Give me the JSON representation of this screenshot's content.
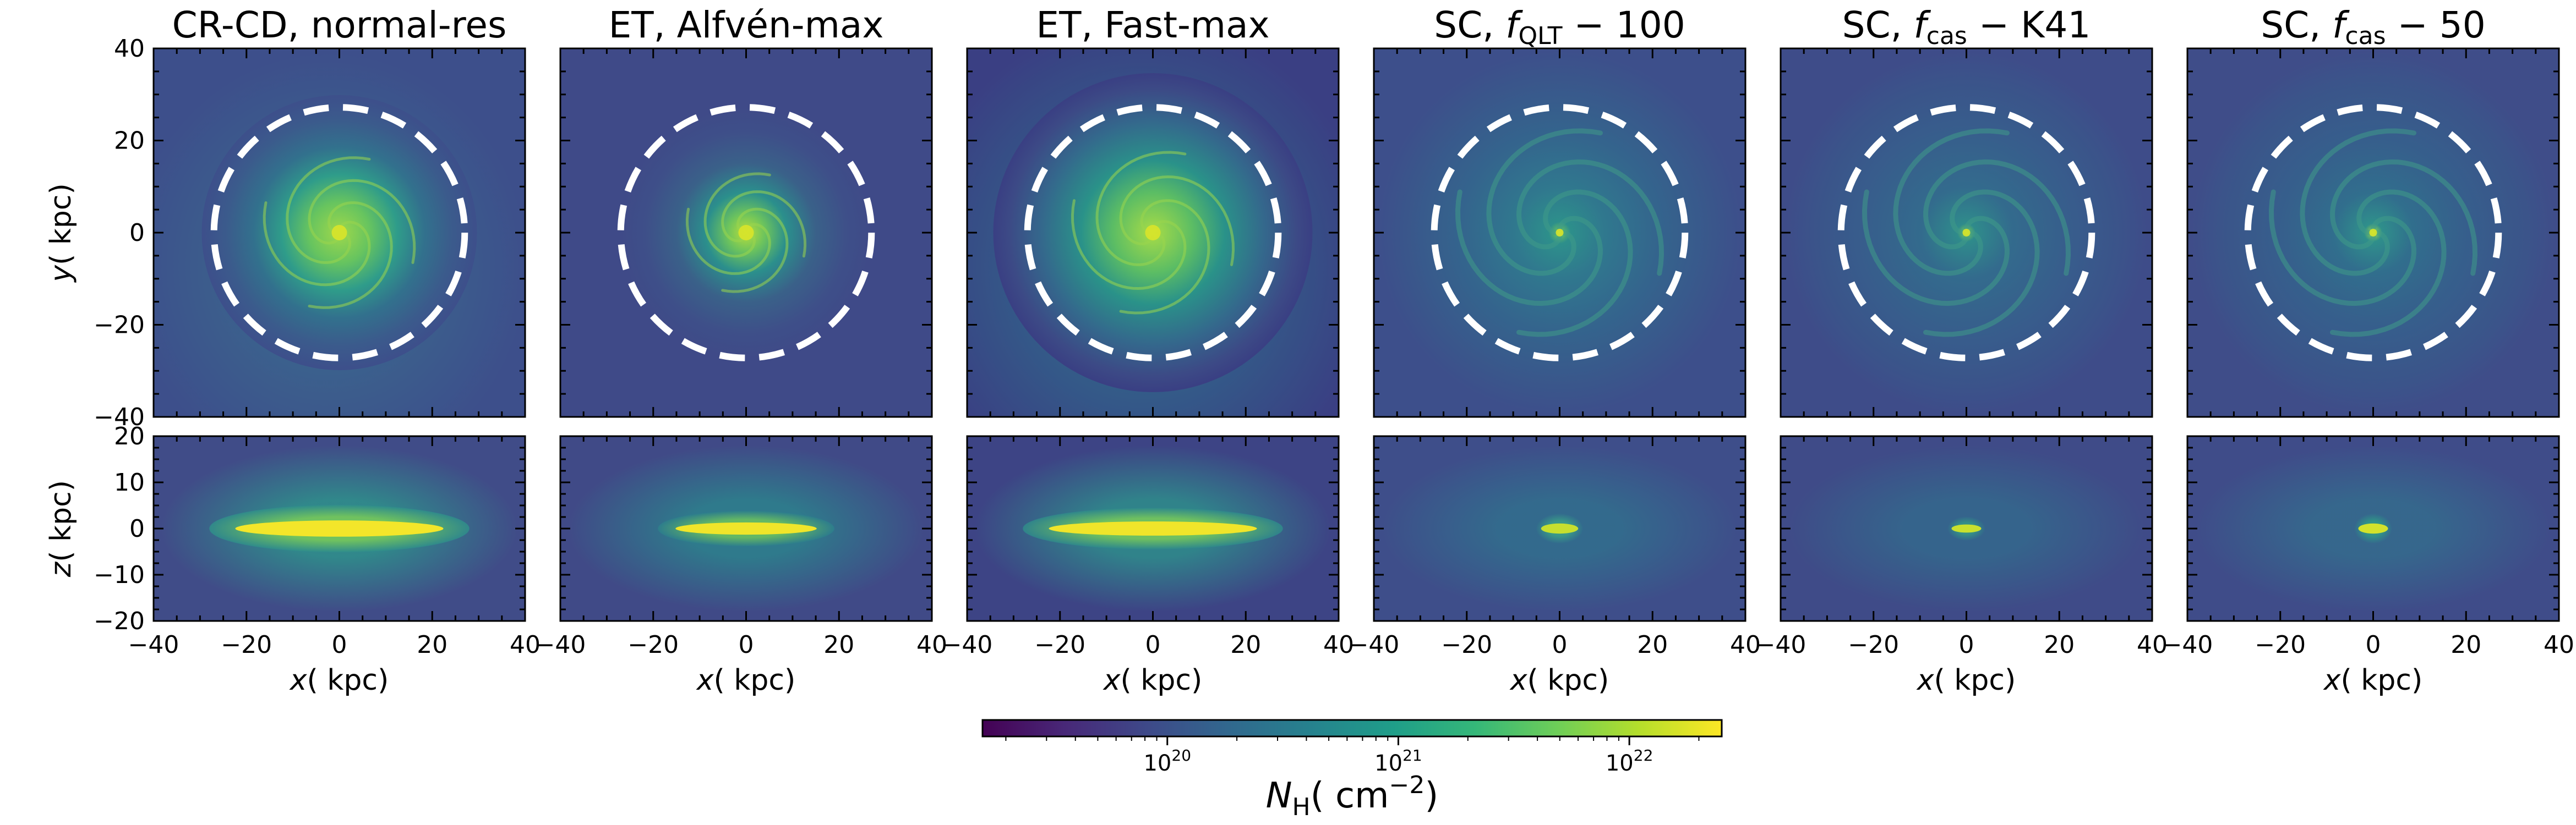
{
  "chart_data": {
    "type": "heatmap",
    "panels": [
      {
        "title_main": "CR-CD, normal-res",
        "title_f": "",
        "title_sub": "",
        "title_rest": "",
        "style": "ring"
      },
      {
        "title_main": "ET, Alfvén-max",
        "title_f": "",
        "title_sub": "",
        "title_rest": "",
        "style": "compact"
      },
      {
        "title_main": "ET, Fast-max",
        "title_f": "",
        "title_sub": "",
        "title_rest": "",
        "style": "fast"
      },
      {
        "title_main": "SC, ",
        "title_f": "f",
        "title_sub": "QLT",
        "title_rest": " − 100",
        "style": "diffuse"
      },
      {
        "title_main": "SC, ",
        "title_f": "f",
        "title_sub": "cas",
        "title_rest": " − K41",
        "style": "diffuse2"
      },
      {
        "title_main": "SC, ",
        "title_f": "f",
        "title_sub": "cas",
        "title_rest": " − 50",
        "style": "diffuse3"
      }
    ],
    "x": {
      "label_var": "x",
      "label_unit": "( kpc)",
      "range": [
        -40,
        40
      ],
      "ticks": [
        -40,
        -20,
        0,
        20,
        40
      ],
      "tick_labels": [
        "−40",
        "−20",
        "0",
        "20",
        "40"
      ]
    },
    "y_face_on": {
      "label_var": "y",
      "label_unit": "( kpc)",
      "range": [
        -40,
        40
      ],
      "ticks": [
        -40,
        -20,
        0,
        20,
        40
      ],
      "tick_labels": [
        "−40",
        "−20",
        "0",
        "20",
        "40"
      ]
    },
    "z_edge_on": {
      "label_var": "z",
      "label_unit": "( kpc)",
      "range": [
        -20,
        20
      ],
      "ticks": [
        -20,
        -10,
        0,
        10,
        20
      ],
      "tick_labels": [
        "−20",
        "−10",
        "0",
        "10",
        "20"
      ]
    },
    "circle_radius_kpc": 27,
    "colorbar": {
      "label_var": "N",
      "label_sub": "H",
      "label_unit": "( cm",
      "label_exp": "−2",
      "label_close": ")",
      "scale": "log",
      "range_log10": [
        19.2,
        22.4
      ],
      "ticks_log10": [
        20,
        21,
        22
      ],
      "tick_base": "10",
      "tick_exps": [
        "20",
        "21",
        "22"
      ],
      "colormap": "viridis"
    }
  }
}
